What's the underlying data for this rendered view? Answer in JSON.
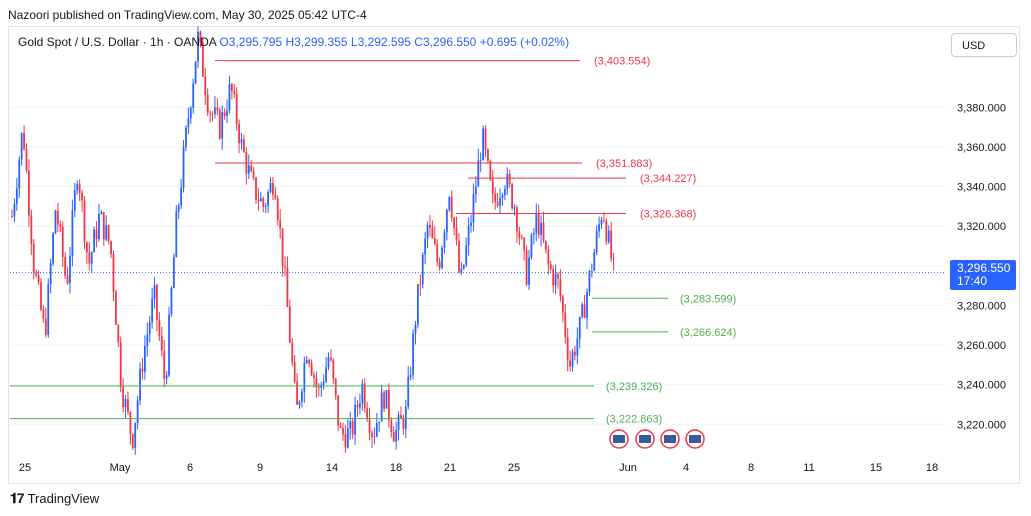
{
  "header": {
    "publish_text": "Nazoori published on TradingView.com, May 30, 2025 05:42 UTC-4"
  },
  "legend": {
    "symbol": "Gold Spot / U.S. Dollar · 1h · OANDA",
    "open": "O3,295.795",
    "high": "H3,299.355",
    "low": "L3,292.595",
    "close": "C3,296.550",
    "change": "+0.695 (+0.02%)"
  },
  "currency_button": "USD",
  "current_price": {
    "price": "3,296.550",
    "countdown": "17:40"
  },
  "footer": {
    "brand": "TradingView"
  },
  "colors": {
    "up": "#2962ff",
    "down": "#f23645",
    "resistance": "#f23645",
    "support": "#4caf50",
    "last_price": "#2962ff"
  },
  "chart_data": {
    "type": "candlestick",
    "instrument": "Gold Spot / U.S. Dollar",
    "timeframe": "1h",
    "ylim": [
      3206,
      3420
    ],
    "y_ticks": [
      3220,
      3240,
      3260,
      3280,
      3300,
      3320,
      3340,
      3360,
      3380
    ],
    "y_tick_labels": [
      "3,220.000",
      "3,240.000",
      "3,260.000",
      "3,280.000",
      "3,300.000",
      "3,320.000",
      "3,340.000",
      "3,360.000",
      "3,380.000"
    ],
    "x_ticks": [
      "25",
      "May",
      "6",
      "9",
      "14",
      "18",
      "21",
      "25",
      "Jun",
      "4",
      "8",
      "11",
      "15",
      "18"
    ],
    "resistance_levels": [
      {
        "value": 3403.554,
        "label": "(3,403.554)"
      },
      {
        "value": 3351.883,
        "label": "(3,351.883)"
      },
      {
        "value": 3344.227,
        "label": "(3,344.227)"
      },
      {
        "value": 3326.368,
        "label": "(3,326.368)"
      }
    ],
    "support_levels": [
      {
        "value": 3283.599,
        "label": "(3,283.599)"
      },
      {
        "value": 3266.624,
        "label": "(3,266.624)"
      },
      {
        "value": 3239.326,
        "label": "(3,239.326)"
      },
      {
        "value": 3222.863,
        "label": "(3,222.863)"
      }
    ],
    "last_price": 3296.55,
    "price_path": [
      [
        "25",
        3325
      ],
      [
        "",
        3370
      ],
      [
        "",
        3300
      ],
      [
        "",
        3265
      ],
      [
        "",
        3330
      ],
      [
        "",
        3290
      ],
      [
        "",
        3350
      ],
      [
        "",
        3300
      ],
      [
        "",
        3325
      ],
      [
        "",
        3310
      ],
      [
        "May",
        3240
      ],
      [
        "",
        3212
      ],
      [
        "",
        3255
      ],
      [
        "",
        3285
      ],
      [
        "",
        3240
      ],
      [
        "",
        3320
      ],
      [
        "",
        3370
      ],
      [
        "6",
        3415
      ],
      [
        "",
        3380
      ],
      [
        "",
        3370
      ],
      [
        "",
        3390
      ],
      [
        "",
        3360
      ],
      [
        "",
        3340
      ],
      [
        "9",
        3330
      ],
      [
        "",
        3345
      ],
      [
        "",
        3290
      ],
      [
        "",
        3225
      ],
      [
        "",
        3260
      ],
      [
        "",
        3235
      ],
      [
        "14",
        3255
      ],
      [
        "",
        3215
      ],
      [
        "",
        3215
      ],
      [
        "",
        3240
      ],
      [
        "18",
        3215
      ],
      [
        "",
        3235
      ],
      [
        "",
        3215
      ],
      [
        "",
        3225
      ],
      [
        "21",
        3280
      ],
      [
        "",
        3320
      ],
      [
        "",
        3300
      ],
      [
        "",
        3340
      ],
      [
        "",
        3290
      ],
      [
        "",
        3325
      ],
      [
        "25",
        3365
      ],
      [
        "",
        3330
      ],
      [
        "",
        3345
      ],
      [
        "",
        3330
      ],
      [
        "",
        3295
      ],
      [
        "",
        3325
      ],
      [
        "",
        3300
      ],
      [
        "",
        3290
      ],
      [
        "",
        3250
      ],
      [
        "",
        3270
      ],
      [
        "",
        3300
      ],
      [
        "",
        3330
      ],
      [
        "Jun",
        3296.55
      ]
    ]
  }
}
